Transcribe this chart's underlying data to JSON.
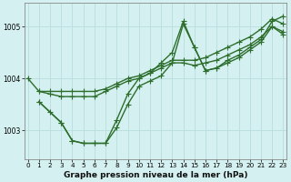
{
  "title": "Graphe pression niveau de la mer (hPa)",
  "background_color": "#d4f0f0",
  "grid_color": "#b8dede",
  "line_color": "#2d6e2d",
  "series": [
    {
      "x": [
        0,
        1,
        2,
        3,
        4,
        5,
        6,
        7,
        8,
        9,
        10,
        11,
        12,
        13,
        14,
        15,
        16,
        17,
        18,
        19,
        20,
        21,
        22,
        23
      ],
      "y": [
        1004.0,
        1003.75,
        1003.75,
        1003.75,
        1003.75,
        1003.75,
        1003.75,
        1003.8,
        1003.9,
        1004.0,
        1004.05,
        1004.15,
        1004.25,
        1004.35,
        1004.35,
        1004.35,
        1004.4,
        1004.5,
        1004.6,
        1004.7,
        1004.8,
        1004.95,
        1005.15,
        1005.05
      ]
    },
    {
      "x": [
        1,
        2,
        3,
        4,
        5,
        6,
        7,
        8,
        9,
        10,
        11,
        12,
        13,
        14,
        15,
        16,
        17,
        18,
        19,
        20,
        21,
        22,
        23
      ],
      "y": [
        1003.75,
        1003.7,
        1003.65,
        1003.65,
        1003.65,
        1003.65,
        1003.75,
        1003.85,
        1003.95,
        1004.0,
        1004.1,
        1004.2,
        1004.3,
        1004.3,
        1004.25,
        1004.3,
        1004.35,
        1004.45,
        1004.55,
        1004.65,
        1004.8,
        1005.0,
        1004.9
      ]
    },
    {
      "x": [
        1,
        2,
        3,
        4,
        5,
        6,
        7,
        8,
        9,
        10,
        11,
        12,
        13,
        14,
        15,
        16,
        17,
        18,
        19,
        20,
        21,
        22,
        23
      ],
      "y": [
        1003.55,
        1003.35,
        1003.15,
        1002.8,
        1002.75,
        1002.75,
        1002.75,
        1003.05,
        1003.5,
        1003.85,
        1003.95,
        1004.05,
        1004.3,
        1005.05,
        1004.6,
        1004.15,
        1004.2,
        1004.3,
        1004.4,
        1004.55,
        1004.7,
        1005.0,
        1004.85
      ]
    },
    {
      "x": [
        1,
        3,
        4,
        5,
        6,
        7,
        8,
        9,
        10,
        11,
        12,
        13,
        14,
        15,
        16,
        17,
        18,
        19,
        20,
        21,
        22,
        23
      ],
      "y": [
        1003.55,
        1003.15,
        1002.8,
        1002.75,
        1002.75,
        1002.75,
        1003.2,
        1003.7,
        1004.0,
        1004.1,
        1004.3,
        1004.5,
        1005.1,
        1004.6,
        1004.15,
        1004.2,
        1004.35,
        1004.45,
        1004.6,
        1004.75,
        1005.1,
        1005.2
      ]
    }
  ],
  "yticks": [
    1003,
    1004,
    1005
  ],
  "ylim": [
    1002.45,
    1005.45
  ],
  "xlim": [
    -0.3,
    23.3
  ],
  "xticks": [
    0,
    1,
    2,
    3,
    4,
    5,
    6,
    7,
    8,
    9,
    10,
    11,
    12,
    13,
    14,
    15,
    16,
    17,
    18,
    19,
    20,
    21,
    22,
    23
  ],
  "marker": "+",
  "markersize": 4,
  "linewidth": 1.0
}
